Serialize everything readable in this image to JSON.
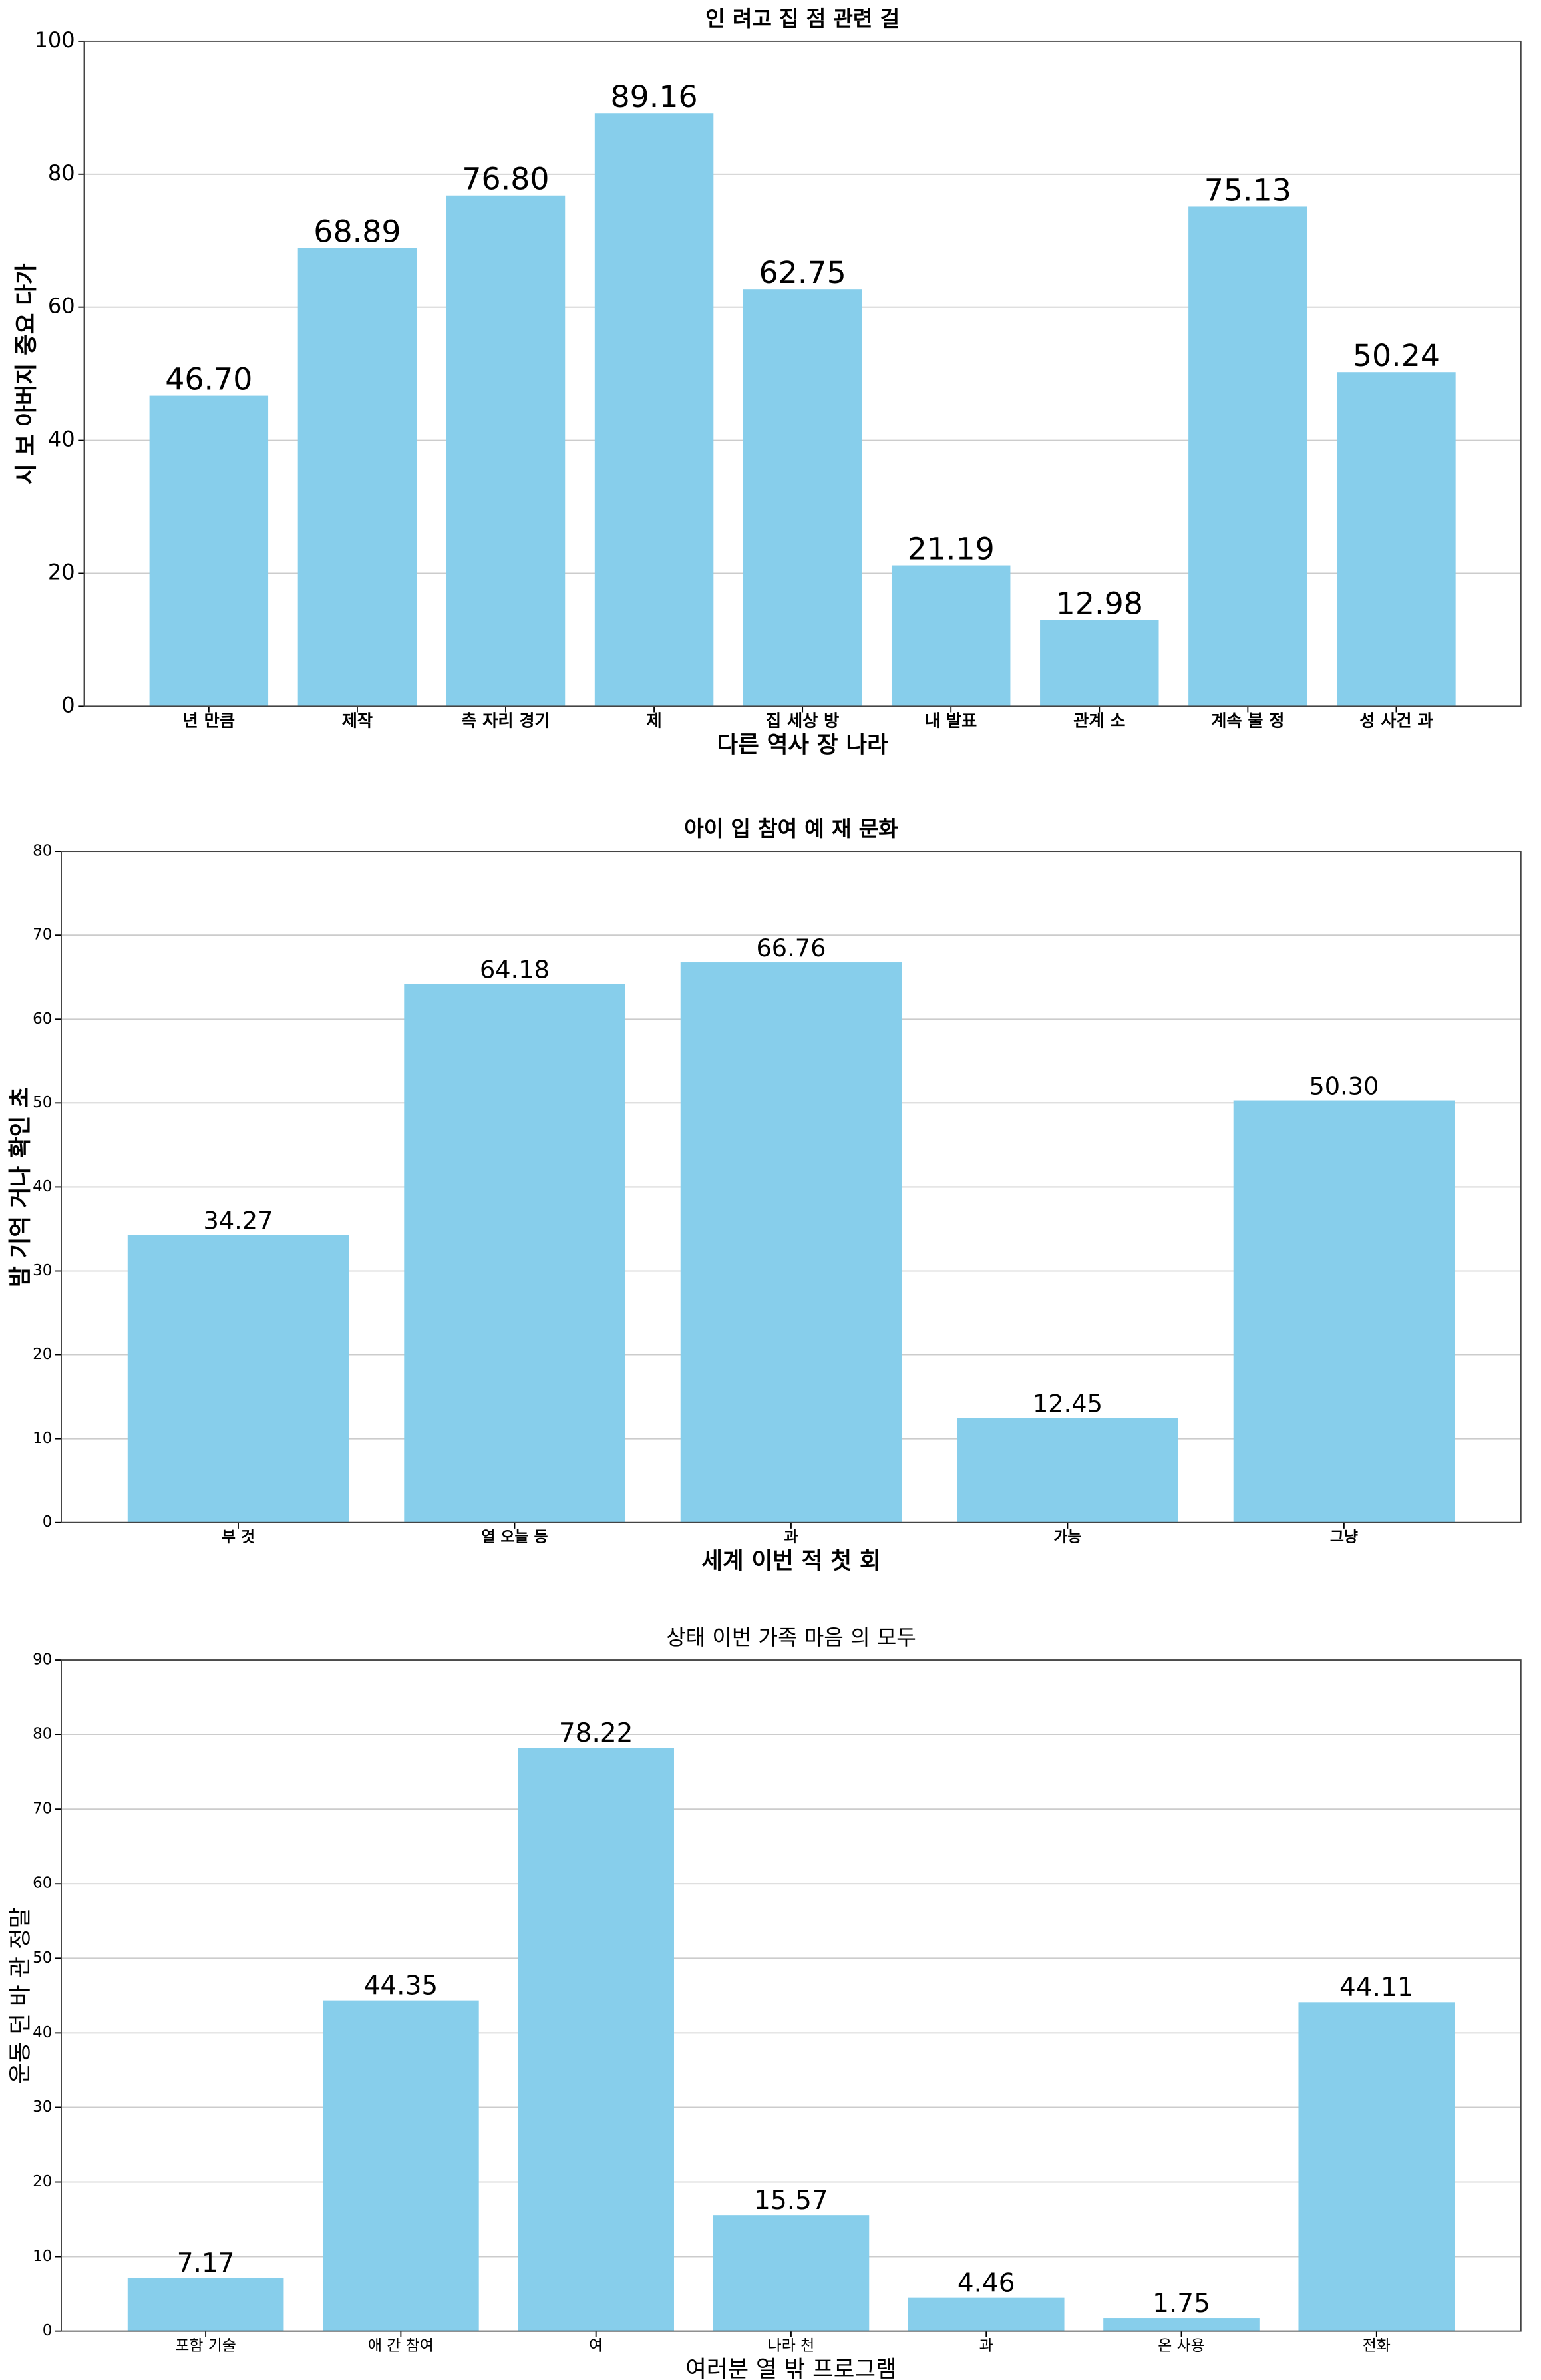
{
  "chart_data": [
    {
      "type": "bar",
      "title": "인 려고 집 점 관련 걸",
      "xlabel": "다른 역사 장 나라",
      "ylabel": "시 보 아버지 중요 다가",
      "categories": [
        "년 만큼",
        "제작",
        "측 자리 경기",
        "제",
        "집 세상 방",
        "내 발표",
        "관계 소",
        "계속 불 정",
        "성 사건 과"
      ],
      "values": [
        46.7,
        68.89,
        76.8,
        89.16,
        62.75,
        21.19,
        12.98,
        75.13,
        50.24
      ],
      "value_labels": [
        "46.70",
        "68.89",
        "76.80",
        "89.16",
        "62.75",
        "21.19",
        "12.98",
        "75.13",
        "50.24"
      ],
      "color": "#87ceeb",
      "ylim": [
        0,
        100
      ],
      "yticks": [
        0,
        20,
        40,
        60,
        80,
        100
      ],
      "grid": true
    },
    {
      "type": "bar",
      "title": "아이 입 참여 예 재 문화",
      "xlabel": "세계 이번 적 첫 회",
      "ylabel": "밤 기억 거나 확인 초",
      "categories": [
        "부 것",
        "열 오늘 등",
        "과",
        "가능",
        "그냥"
      ],
      "values": [
        34.27,
        64.18,
        66.76,
        12.45,
        50.3
      ],
      "value_labels": [
        "34.27",
        "64.18",
        "66.76",
        "12.45",
        "50.30"
      ],
      "color": "#87ceeb",
      "ylim": [
        0,
        80
      ],
      "yticks": [
        0,
        10,
        20,
        30,
        40,
        50,
        60,
        70,
        80
      ],
      "grid": true
    },
    {
      "type": "bar",
      "title": "상태 이번 가족 마음 의 모두",
      "xlabel": "여러분 열 밖 프로그램",
      "ylabel": "운동 던 바 관 정말",
      "categories": [
        "포함 기술",
        "애 간 참여",
        "여",
        "나라 천",
        "과",
        "온 사용",
        "전화"
      ],
      "values": [
        7.17,
        44.35,
        78.22,
        15.57,
        4.46,
        1.75,
        44.11
      ],
      "value_labels": [
        "7.17",
        "44.35",
        "78.22",
        "15.57",
        "4.46",
        "1.75",
        "44.11"
      ],
      "color": "#87ceeb",
      "ylim": [
        0,
        90
      ],
      "yticks": [
        0,
        10,
        20,
        30,
        40,
        50,
        60,
        70,
        80,
        90
      ],
      "grid": true
    }
  ]
}
